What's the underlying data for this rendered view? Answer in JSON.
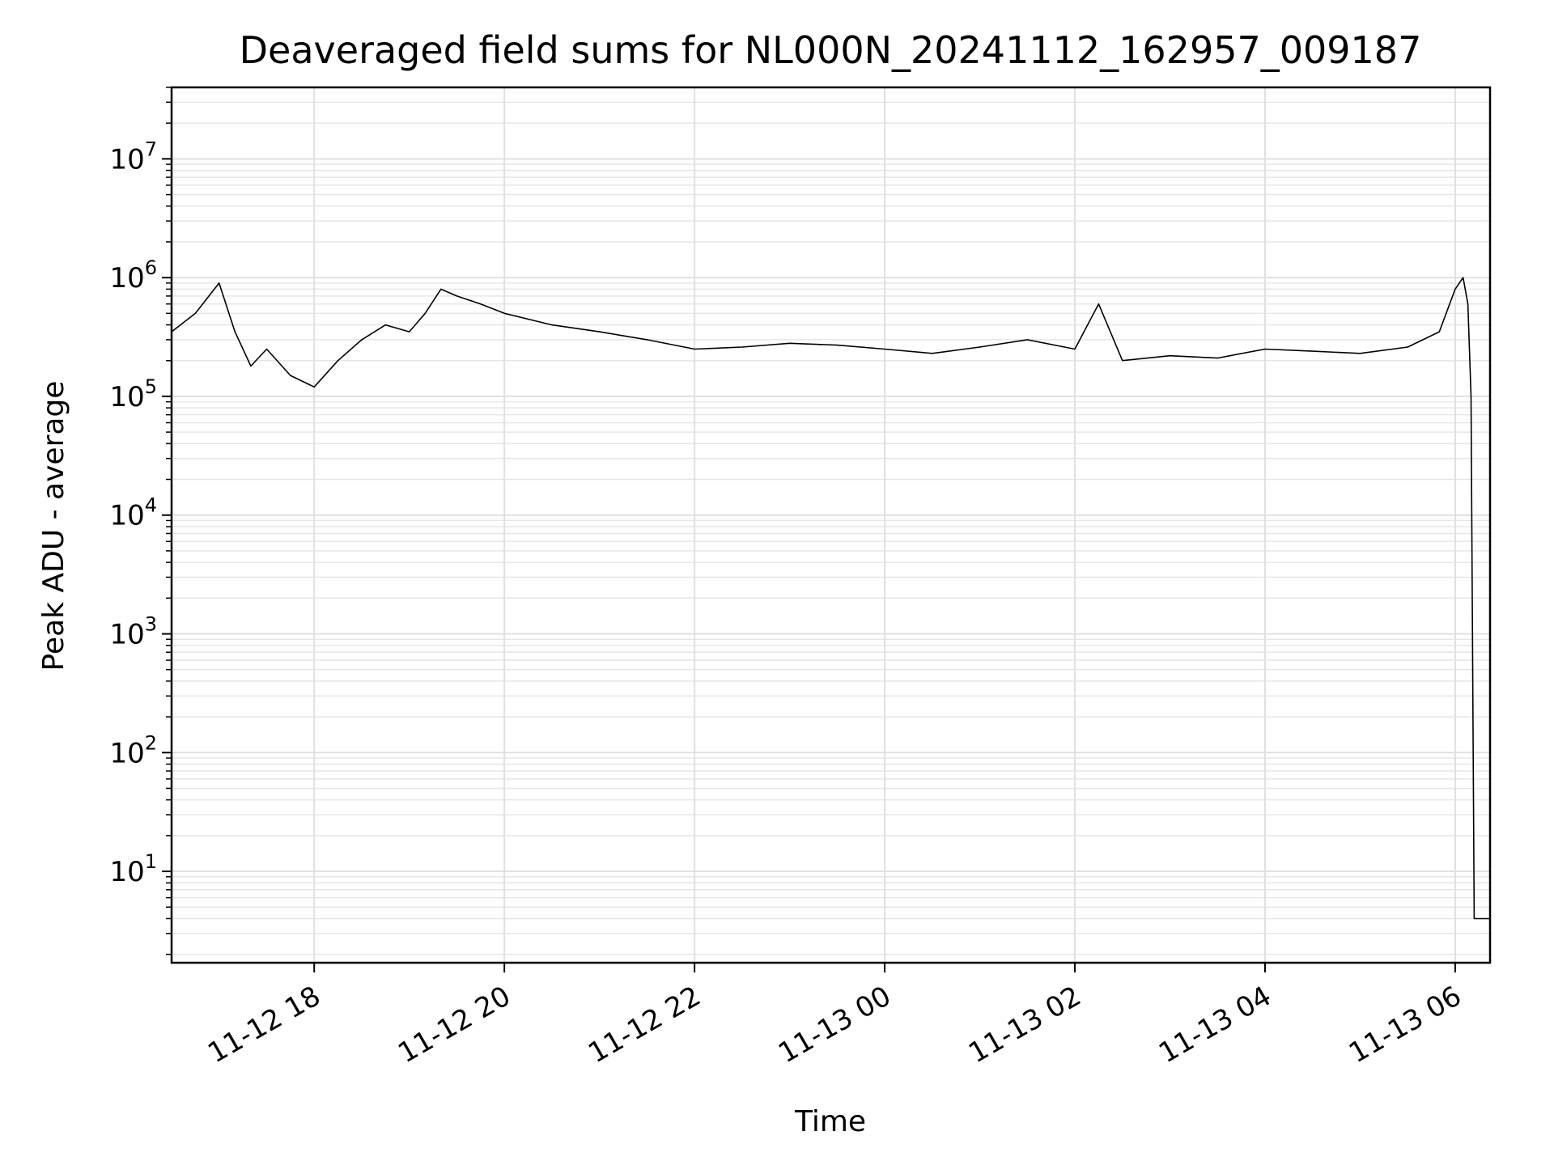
{
  "chart_data": {
    "type": "line",
    "title": "Deaveraged field sums for NL000N_20241112_162957_009187",
    "xlabel": "Time",
    "ylabel": "Peak ADU - average",
    "yscale": "log",
    "ylim": [
      1.7,
      40000000
    ],
    "xlim": [
      "2024-11-12 16:30",
      "2024-11-13 06:22"
    ],
    "grid": true,
    "line_color": "#000000",
    "x_ticks": [
      {
        "t": "2024-11-12 18:00",
        "label": "11-12 18"
      },
      {
        "t": "2024-11-12 20:00",
        "label": "11-12 20"
      },
      {
        "t": "2024-11-12 22:00",
        "label": "11-12 22"
      },
      {
        "t": "2024-11-13 00:00",
        "label": "11-13 00"
      },
      {
        "t": "2024-11-13 02:00",
        "label": "11-13 02"
      },
      {
        "t": "2024-11-13 04:00",
        "label": "11-13 04"
      },
      {
        "t": "2024-11-13 06:00",
        "label": "11-13 06"
      }
    ],
    "y_ticks": [
      {
        "value": 10,
        "base": "10",
        "exp": "1"
      },
      {
        "value": 100,
        "base": "10",
        "exp": "2"
      },
      {
        "value": 1000,
        "base": "10",
        "exp": "3"
      },
      {
        "value": 10000,
        "base": "10",
        "exp": "4"
      },
      {
        "value": 100000,
        "base": "10",
        "exp": "5"
      },
      {
        "value": 1000000,
        "base": "10",
        "exp": "6"
      },
      {
        "value": 10000000,
        "base": "10",
        "exp": "7"
      }
    ],
    "series": [
      {
        "x": [
          "2024-11-12 16:30",
          "2024-11-12 16:45",
          "2024-11-12 17:00",
          "2024-11-12 17:10",
          "2024-11-12 17:20",
          "2024-11-12 17:30",
          "2024-11-12 17:45",
          "2024-11-12 18:00",
          "2024-11-12 18:15",
          "2024-11-12 18:30",
          "2024-11-12 18:45",
          "2024-11-12 19:00",
          "2024-11-12 19:10",
          "2024-11-12 19:20",
          "2024-11-12 19:30",
          "2024-11-12 19:45",
          "2024-11-12 20:00",
          "2024-11-12 20:30",
          "2024-11-12 21:00",
          "2024-11-12 21:30",
          "2024-11-12 22:00",
          "2024-11-12 22:30",
          "2024-11-12 23:00",
          "2024-11-12 23:30",
          "2024-11-13 00:00",
          "2024-11-13 00:30",
          "2024-11-13 01:00",
          "2024-11-13 01:30",
          "2024-11-13 02:00",
          "2024-11-13 02:15",
          "2024-11-13 02:30",
          "2024-11-13 03:00",
          "2024-11-13 03:30",
          "2024-11-13 04:00",
          "2024-11-13 04:30",
          "2024-11-13 05:00",
          "2024-11-13 05:30",
          "2024-11-13 05:50",
          "2024-11-13 06:00",
          "2024-11-13 06:05",
          "2024-11-13 06:08",
          "2024-11-13 06:10",
          "2024-11-13 06:12",
          "2024-11-13 06:22"
        ],
        "values": [
          350000,
          500000,
          900000,
          350000,
          180000,
          250000,
          150000,
          120000,
          200000,
          300000,
          400000,
          350000,
          500000,
          800000,
          700000,
          600000,
          500000,
          400000,
          350000,
          300000,
          250000,
          260000,
          280000,
          270000,
          250000,
          230000,
          260000,
          300000,
          250000,
          600000,
          200000,
          220000,
          210000,
          250000,
          240000,
          230000,
          260000,
          350000,
          800000,
          1000000,
          600000,
          100000,
          4,
          4
        ]
      }
    ]
  }
}
